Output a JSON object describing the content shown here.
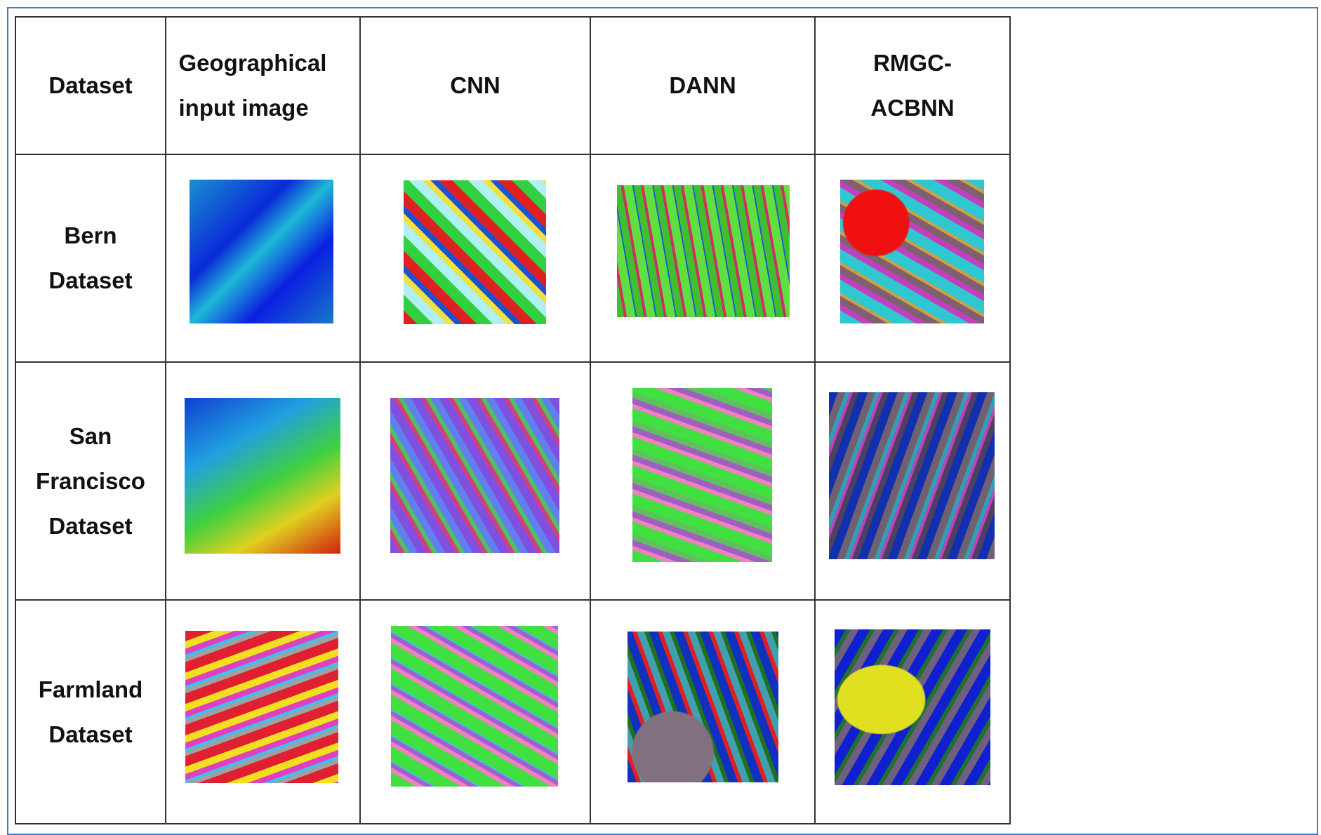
{
  "table": {
    "header": [
      "Dataset",
      "Geographical input image",
      "CNN",
      "DANN",
      "RMGC-ACBNN"
    ],
    "rows": [
      "Bern Dataset",
      "San Francisco Dataset",
      "Farmland Dataset"
    ]
  }
}
